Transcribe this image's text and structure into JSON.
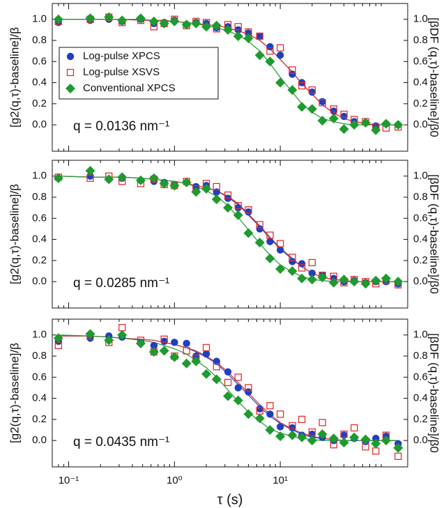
{
  "chart_data": [
    {
      "type": "scatter",
      "xscale": "log",
      "xlim": [
        0.07,
        160
      ],
      "ylim": [
        -0.25,
        1.15
      ],
      "y2lim": [
        -0.25,
        1.15
      ],
      "xticks": [
        0.1,
        1,
        10
      ],
      "xtick_labels": false,
      "x_minor_ticks": [
        0.08,
        0.09,
        0.2,
        0.3,
        0.4,
        0.5,
        0.6,
        0.7,
        0.8,
        0.9,
        2,
        3,
        4,
        5,
        6,
        7,
        8,
        9,
        20,
        30,
        40,
        50,
        60,
        70,
        80,
        90
      ],
      "yticks": [
        {
          "value": 0,
          "label": "0.0"
        },
        {
          "value": 0.2,
          "label": "0.2"
        },
        {
          "value": 0.4,
          "label": "0.4"
        },
        {
          "value": 0.6,
          "label": "0.6"
        },
        {
          "value": 0.8,
          "label": "0.8"
        },
        {
          "value": 1,
          "label": "1.0"
        }
      ],
      "y2ticks": [
        {
          "value": 0,
          "label": "0.0"
        },
        {
          "value": 0.2,
          "label": "0.2"
        },
        {
          "value": 0.4,
          "label": "0.4"
        },
        {
          "value": 0.6,
          "label": "0.6"
        },
        {
          "value": 0.8,
          "label": "0.8"
        },
        {
          "value": 1,
          "label": "1.0"
        }
      ],
      "ylabel": "[g2(q,τ)-baseline]/β",
      "y2label": "[βDF (q,τ)-baseline]/β0",
      "annotation": "q = 0.0136 nm⁻¹",
      "legend": "upper-left",
      "x": [
        0.08,
        0.16,
        0.24,
        0.32,
        0.48,
        0.64,
        0.8,
        1,
        1.3,
        1.6,
        2,
        2.5,
        3.2,
        4,
        5,
        6.4,
        8,
        10,
        13,
        16,
        20,
        25,
        32,
        40,
        50,
        64,
        80,
        100,
        130
      ],
      "series": [
        {
          "name": "Log-pulse XPCS",
          "color": "#1f3fbf",
          "marker": "circle",
          "values": [
            0.97,
            0.99,
            1.0,
            0.98,
            1.0,
            0.96,
            0.97,
            0.99,
            0.95,
            0.97,
            0.96,
            0.92,
            0.93,
            0.9,
            0.87,
            0.84,
            0.74,
            0.66,
            0.48,
            0.4,
            0.31,
            0.22,
            0.13,
            0.08,
            0.03,
            0.02,
            -0.01,
            0.01,
            0.0
          ],
          "fit": [
            1,
            1,
            1,
            1,
            0.99,
            0.99,
            0.98,
            0.98,
            0.97,
            0.96,
            0.95,
            0.94,
            0.92,
            0.89,
            0.86,
            0.8,
            0.72,
            0.62,
            0.5,
            0.39,
            0.29,
            0.19,
            0.11,
            0.06,
            0.03,
            0.01,
            0,
            0,
            0
          ]
        },
        {
          "name": "Log-pulse XSVS",
          "color": "#e03030",
          "marker": "square",
          "values": [
            0.98,
            1.0,
            1.02,
            0.97,
            0.99,
            0.93,
            0.96,
            1.0,
            0.94,
            0.98,
            0.97,
            0.91,
            0.95,
            0.93,
            0.88,
            0.84,
            0.7,
            0.73,
            0.52,
            0.37,
            0.33,
            0.21,
            0.15,
            0.1,
            0.05,
            0.03,
            -0.02,
            -0.03,
            -0.02
          ],
          "fit": [
            1,
            1,
            1,
            1,
            0.99,
            0.99,
            0.98,
            0.98,
            0.97,
            0.96,
            0.95,
            0.94,
            0.92,
            0.89,
            0.86,
            0.8,
            0.72,
            0.62,
            0.5,
            0.39,
            0.29,
            0.19,
            0.11,
            0.06,
            0.03,
            0.01,
            0,
            0,
            0
          ]
        },
        {
          "name": "Conventional XPCS",
          "color": "#1e9a2e",
          "marker": "diamond",
          "values": [
            1.0,
            1.01,
            1.02,
            0.99,
            1.01,
            0.98,
            0.96,
            0.98,
            0.95,
            0.96,
            0.93,
            0.94,
            0.9,
            0.84,
            0.82,
            0.66,
            0.6,
            0.4,
            0.33,
            0.17,
            0.15,
            0.04,
            0.06,
            -0.04,
            0.0,
            0.02,
            -0.05,
            0.01,
            0.0
          ],
          "fit": [
            1,
            1,
            1,
            1,
            1,
            0.99,
            0.99,
            0.98,
            0.97,
            0.96,
            0.94,
            0.92,
            0.89,
            0.85,
            0.79,
            0.7,
            0.58,
            0.45,
            0.31,
            0.2,
            0.12,
            0.06,
            0.03,
            0.01,
            0,
            0,
            0,
            0,
            0
          ]
        }
      ]
    },
    {
      "type": "scatter",
      "xscale": "log",
      "xlim": [
        0.07,
        160
      ],
      "ylim": [
        -0.25,
        1.15
      ],
      "y2lim": [
        -0.25,
        1.15
      ],
      "xticks": [
        0.1,
        1,
        10
      ],
      "xtick_labels": false,
      "x_minor_ticks": [
        0.08,
        0.09,
        0.2,
        0.3,
        0.4,
        0.5,
        0.6,
        0.7,
        0.8,
        0.9,
        2,
        3,
        4,
        5,
        6,
        7,
        8,
        9,
        20,
        30,
        40,
        50,
        60,
        70,
        80,
        90
      ],
      "yticks": [
        {
          "value": 0,
          "label": "0.0"
        },
        {
          "value": 0.2,
          "label": "0.2"
        },
        {
          "value": 0.4,
          "label": "0.4"
        },
        {
          "value": 0.6,
          "label": "0.6"
        },
        {
          "value": 0.8,
          "label": "0.8"
        },
        {
          "value": 1,
          "label": "1.0"
        }
      ],
      "y2ticks": [
        {
          "value": 0,
          "label": "0.0"
        },
        {
          "value": 0.2,
          "label": "0.2"
        },
        {
          "value": 0.4,
          "label": "0.4"
        },
        {
          "value": 0.6,
          "label": "0.6"
        },
        {
          "value": 0.8,
          "label": "0.8"
        },
        {
          "value": 1,
          "label": "1.0"
        }
      ],
      "ylabel": "[g2(q,τ)-baseline]/β",
      "y2label": "[βDF (q,τ)-baseline]/β0",
      "annotation": "q = 0.0285 nm⁻¹",
      "x": [
        0.08,
        0.16,
        0.24,
        0.32,
        0.48,
        0.64,
        0.8,
        1,
        1.3,
        1.6,
        2,
        2.5,
        3.2,
        4,
        5,
        6.4,
        8,
        10,
        13,
        16,
        20,
        25,
        32,
        40,
        50,
        64,
        80,
        100,
        130
      ],
      "series": [
        {
          "color": "#1f3fbf",
          "marker": "circle",
          "values": [
            0.98,
            1.0,
            0.97,
            0.98,
            0.96,
            0.95,
            0.94,
            0.92,
            0.94,
            0.9,
            0.91,
            0.85,
            0.79,
            0.7,
            0.66,
            0.5,
            0.38,
            0.3,
            0.19,
            0.17,
            0.08,
            0.06,
            0.03,
            0.0,
            0.01,
            -0.01,
            0.0,
            0.0,
            -0.02
          ],
          "fit": [
            1,
            0.99,
            0.99,
            0.99,
            0.98,
            0.97,
            0.96,
            0.95,
            0.93,
            0.91,
            0.89,
            0.86,
            0.8,
            0.73,
            0.63,
            0.52,
            0.41,
            0.31,
            0.21,
            0.14,
            0.08,
            0.04,
            0.02,
            0.01,
            0,
            0,
            0,
            0,
            0
          ]
        },
        {
          "color": "#e03030",
          "marker": "square",
          "values": [
            0.99,
            0.98,
            1.0,
            0.95,
            0.93,
            0.97,
            0.92,
            0.91,
            0.95,
            0.88,
            0.93,
            0.9,
            0.82,
            0.72,
            0.68,
            0.54,
            0.44,
            0.36,
            0.23,
            0.13,
            0.18,
            0.06,
            0.05,
            -0.01,
            0.02,
            0.0,
            -0.02,
            0.01,
            -0.03
          ],
          "fit": [
            1,
            0.99,
            0.99,
            0.99,
            0.98,
            0.97,
            0.96,
            0.95,
            0.93,
            0.91,
            0.89,
            0.86,
            0.81,
            0.74,
            0.64,
            0.53,
            0.42,
            0.32,
            0.22,
            0.14,
            0.08,
            0.04,
            0.02,
            0.01,
            0,
            0,
            0,
            0,
            0
          ]
        },
        {
          "color": "#1e9a2e",
          "marker": "diamond",
          "values": [
            0.98,
            1.05,
            0.97,
            0.99,
            0.96,
            0.98,
            0.93,
            0.91,
            0.94,
            0.85,
            0.88,
            0.78,
            0.7,
            0.63,
            0.46,
            0.37,
            0.22,
            0.12,
            0.1,
            0.03,
            0.02,
            0.04,
            -0.01,
            0.02,
            0.0,
            -0.02,
            0.01,
            0.03,
            0.0
          ],
          "fit": [
            1,
            0.99,
            0.99,
            0.99,
            0.98,
            0.97,
            0.96,
            0.95,
            0.93,
            0.9,
            0.86,
            0.81,
            0.72,
            0.61,
            0.49,
            0.36,
            0.25,
            0.16,
            0.09,
            0.05,
            0.02,
            0.01,
            0,
            0,
            0,
            0,
            0,
            0,
            0
          ]
        }
      ]
    },
    {
      "type": "scatter",
      "xscale": "log",
      "xlim": [
        0.07,
        160
      ],
      "ylim": [
        -0.25,
        1.15
      ],
      "y2lim": [
        -0.25,
        1.15
      ],
      "xticks": [
        {
          "value": 0.1,
          "label": "10⁻¹"
        },
        {
          "value": 1,
          "label": "10⁰"
        },
        {
          "value": 10,
          "label": "10¹"
        }
      ],
      "xtick_labels": true,
      "x_minor_ticks": [
        0.08,
        0.09,
        0.2,
        0.3,
        0.4,
        0.5,
        0.6,
        0.7,
        0.8,
        0.9,
        2,
        3,
        4,
        5,
        6,
        7,
        8,
        9,
        20,
        30,
        40,
        50,
        60,
        70,
        80,
        90
      ],
      "yticks": [
        {
          "value": 0,
          "label": "0.0"
        },
        {
          "value": 0.2,
          "label": "0.2"
        },
        {
          "value": 0.4,
          "label": "0.4"
        },
        {
          "value": 0.6,
          "label": "0.6"
        },
        {
          "value": 0.8,
          "label": "0.8"
        },
        {
          "value": 1,
          "label": "1.0"
        }
      ],
      "y2ticks": [
        {
          "value": 0,
          "label": "0.0"
        },
        {
          "value": 0.2,
          "label": "0.2"
        },
        {
          "value": 0.4,
          "label": "0.4"
        },
        {
          "value": 0.6,
          "label": "0.6"
        },
        {
          "value": 0.8,
          "label": "0.8"
        },
        {
          "value": 1,
          "label": "1.0"
        }
      ],
      "ylabel": "[g2(q,τ)-baseline]/β",
      "y2label": "[βDF (q,τ)-baseline]/β0",
      "xlabel": "τ (s)",
      "annotation": "q = 0.0435 nm⁻¹",
      "x": [
        0.08,
        0.16,
        0.24,
        0.32,
        0.48,
        0.64,
        0.8,
        1,
        1.3,
        1.6,
        2,
        2.5,
        3.2,
        4,
        5,
        6.4,
        8,
        10,
        13,
        16,
        20,
        25,
        32,
        40,
        50,
        64,
        80,
        100,
        130
      ],
      "series": [
        {
          "color": "#1f3fbf",
          "marker": "circle",
          "values": [
            0.94,
            0.97,
            0.99,
            0.98,
            0.93,
            0.9,
            0.94,
            0.93,
            0.92,
            0.8,
            0.82,
            0.75,
            0.65,
            0.5,
            0.46,
            0.3,
            0.25,
            0.13,
            0.12,
            0.05,
            0.06,
            0.03,
            0.0,
            0.05,
            0.02,
            -0.01,
            0.02,
            0.04,
            -0.03
          ],
          "fit": [
            0.99,
            0.99,
            0.98,
            0.97,
            0.96,
            0.95,
            0.93,
            0.91,
            0.88,
            0.84,
            0.79,
            0.73,
            0.63,
            0.53,
            0.43,
            0.32,
            0.23,
            0.16,
            0.1,
            0.06,
            0.03,
            0.02,
            0.01,
            0,
            0,
            0,
            0,
            0,
            0
          ]
        },
        {
          "color": "#e03030",
          "marker": "square",
          "values": [
            0.9,
            0.99,
            0.93,
            1.07,
            0.95,
            0.84,
            0.96,
            0.8,
            0.85,
            0.78,
            0.88,
            0.7,
            0.55,
            0.6,
            0.5,
            0.28,
            0.33,
            0.25,
            0.14,
            0.2,
            0.08,
            0.17,
            -0.04,
            0.06,
            0.12,
            -0.06,
            -0.1,
            0.05,
            -0.15
          ],
          "fit": [
            0.99,
            0.99,
            0.98,
            0.97,
            0.96,
            0.95,
            0.93,
            0.91,
            0.88,
            0.85,
            0.8,
            0.74,
            0.65,
            0.55,
            0.45,
            0.34,
            0.25,
            0.17,
            0.11,
            0.07,
            0.04,
            0.02,
            0.01,
            0,
            0,
            0,
            0,
            0,
            0
          ]
        },
        {
          "color": "#1e9a2e",
          "marker": "diamond",
          "values": [
            0.97,
            1.01,
            0.95,
            1.0,
            0.92,
            0.84,
            0.85,
            0.79,
            0.73,
            0.75,
            0.63,
            0.58,
            0.42,
            0.38,
            0.25,
            0.21,
            0.1,
            0.04,
            0.05,
            0.03,
            0.0,
            0.06,
            0.02,
            -0.02,
            0.03,
            0.01,
            -0.03,
            0.0,
            -0.07
          ],
          "fit": [
            1,
            0.99,
            0.98,
            0.97,
            0.95,
            0.93,
            0.9,
            0.87,
            0.82,
            0.76,
            0.69,
            0.6,
            0.48,
            0.37,
            0.27,
            0.18,
            0.11,
            0.07,
            0.04,
            0.02,
            0.01,
            0,
            0,
            0,
            0,
            0,
            0,
            0,
            0
          ]
        }
      ]
    }
  ]
}
